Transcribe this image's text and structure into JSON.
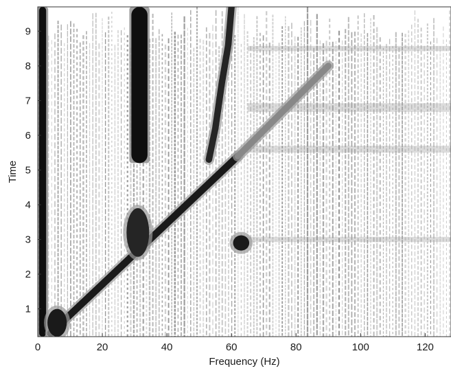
{
  "chart_data": {
    "type": "heatmap",
    "title": "",
    "xlabel": "Frequency (Hz)",
    "ylabel": "Time",
    "xlim": [
      0,
      128
    ],
    "ylim": [
      0.2,
      9.7
    ],
    "x_ticks": [
      0,
      20,
      40,
      60,
      80,
      100,
      120
    ],
    "y_ticks": [
      1,
      2,
      3,
      4,
      5,
      6,
      7,
      8,
      9
    ],
    "x_tick_labels": [
      "0",
      "20",
      "40",
      "60",
      "80",
      "100",
      "120"
    ],
    "y_tick_labels": [
      "1",
      "2",
      "3",
      "4",
      "5",
      "6",
      "7",
      "8",
      "9"
    ],
    "colormap": "gray",
    "colors": {
      "low": "#ffffff",
      "mid": "#9a9a9a",
      "high": "#141414"
    },
    "features": [
      {
        "name": "baseline",
        "kind": "vertical_band",
        "x": 1.5,
        "t_start": 0.2,
        "t_end": 9.7,
        "width_hz": 2.2,
        "intensity": 1.0
      },
      {
        "name": "tone",
        "kind": "vertical_band",
        "x": 31.5,
        "t_start": 5.2,
        "t_end": 9.7,
        "width_hz": 5.0,
        "intensity": 1.0
      },
      {
        "name": "chirp",
        "kind": "linear",
        "x0": 4,
        "t0": 0.3,
        "x1": 62,
        "t1": 5.4,
        "width_hz": 2.2,
        "intensity": 0.95
      },
      {
        "name": "chirp-upper",
        "kind": "linear",
        "x0": 62,
        "t0": 5.4,
        "x1": 90,
        "t1": 8.0,
        "width_hz": 2.0,
        "intensity": 0.45
      },
      {
        "name": "curve",
        "kind": "polyline",
        "points": [
          [
            60,
            9.7
          ],
          [
            59,
            8.6
          ],
          [
            57,
            7.5
          ],
          [
            55,
            6.2
          ],
          [
            53,
            5.3
          ]
        ],
        "width_hz": 2.0,
        "intensity": 0.9
      },
      {
        "name": "blob-center",
        "kind": "blob",
        "x": 31,
        "t": 3.2,
        "rx_hz": 3.5,
        "rt": 0.7,
        "intensity": 0.9
      },
      {
        "name": "blob-right",
        "kind": "blob",
        "x": 63,
        "t": 2.9,
        "rx_hz": 2.5,
        "rt": 0.22,
        "intensity": 0.95
      },
      {
        "name": "blob-left",
        "kind": "blob",
        "x": 6,
        "t": 0.6,
        "rx_hz": 3.0,
        "rt": 0.4,
        "intensity": 0.95
      }
    ]
  }
}
